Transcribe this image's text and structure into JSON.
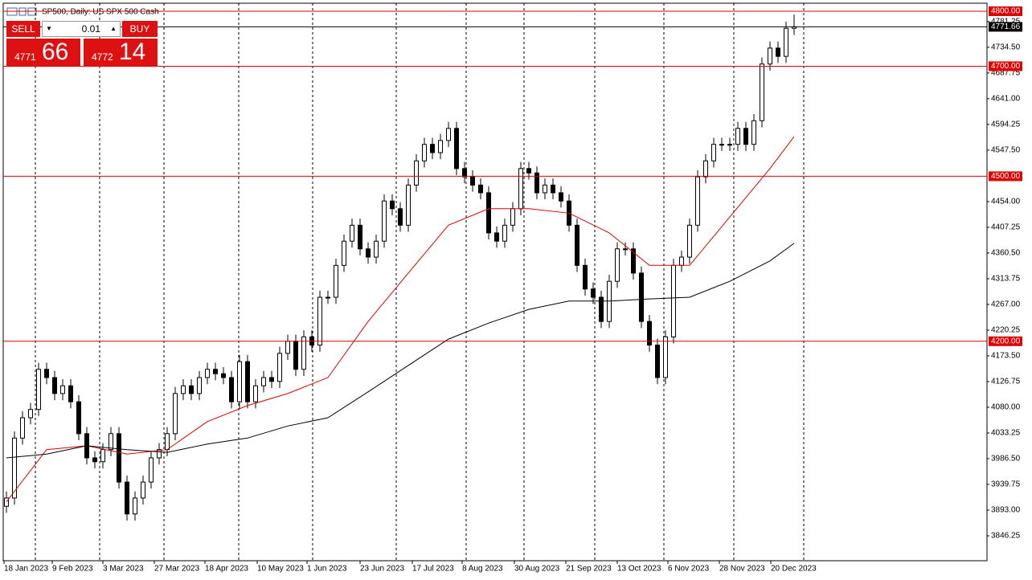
{
  "chart_data": {
    "type": "candlestick",
    "title": "SP500, Daily: US SPX 500 Cash",
    "trade_panel": {
      "sell": "SELL",
      "buy": "BUY",
      "volume": "0.01",
      "bid_main": "4771",
      "bid_pips": "66",
      "ask_main": "4772",
      "ask_pips": "14"
    },
    "xlim": [
      -0.4,
      122
    ],
    "ylim": [
      3801,
      4814.6
    ],
    "xticks": [
      {
        "value": 0,
        "label": "18 Jan 2023"
      },
      {
        "value": 6,
        "label": "9 Feb 2023"
      },
      {
        "value": 12.3,
        "label": "3 Mar 2023"
      },
      {
        "value": 18.7,
        "label": "27 Mar 2023"
      },
      {
        "value": 25,
        "label": "18 Apr 2023"
      },
      {
        "value": 31.5,
        "label": "10 May 2023"
      },
      {
        "value": 37.7,
        "label": "1 Jun 2023"
      },
      {
        "value": 44.3,
        "label": "23 Jun 2023"
      },
      {
        "value": 50.8,
        "label": "17 Jul 2023"
      },
      {
        "value": 57,
        "label": "8 Aug 2023"
      },
      {
        "value": 63.5,
        "label": "30 Aug 2023"
      },
      {
        "value": 69.9,
        "label": "21 Sep 2023"
      },
      {
        "value": 76.3,
        "label": "13 Oct 2023"
      },
      {
        "value": 82.6,
        "label": "6 Nov 2023"
      },
      {
        "value": 89,
        "label": "28 Nov 2023"
      },
      {
        "value": 95.4,
        "label": "20 Dec 2023"
      }
    ],
    "yticks": [
      3846.25,
      {
        "value": 3893,
        "label": "3893.00"
      },
      3939.75,
      {
        "value": 3986.5,
        "label": "3986.50"
      },
      4033.25,
      {
        "value": 4080,
        "label": "4080.00"
      },
      4126.75,
      {
        "value": 4173.5,
        "label": "4173.50"
      },
      4220.25,
      {
        "value": 4267,
        "label": "4267.00"
      },
      4313.75,
      {
        "value": 4360.5,
        "label": "4360.50"
      },
      4407.25,
      {
        "value": 4454,
        "label": "4454.00"
      },
      {
        "value": 4547.5,
        "label": "4547.50"
      },
      4594.25,
      {
        "value": 4641,
        "label": "4641.00"
      },
      4687.75,
      {
        "value": 4734.5,
        "label": "4734.50"
      },
      4781.25
    ],
    "levels": [
      {
        "value": 4800,
        "label": "4800.00",
        "color": "#e00000"
      },
      {
        "value": 4700,
        "label": "4700.00",
        "color": "#e00000"
      },
      {
        "value": 4500,
        "label": "4500.00",
        "color": "#e00000"
      },
      {
        "value": 4200,
        "label": "4200.00",
        "color": "#e00000"
      },
      {
        "value": 4771.66,
        "label": "4771.66",
        "color": "#000000"
      }
    ],
    "open": [
      3900,
      3915,
      4024,
      4061,
      4076,
      4149,
      4134,
      4105,
      4119,
      4090,
      4032,
      3988,
      3981,
      4003,
      4032,
      3944,
      3886,
      3915,
      3944,
      3988,
      4003,
      4032,
      4105,
      4119,
      4105,
      4134,
      4149,
      4141,
      4134,
      4090,
      4163,
      4090,
      4119,
      4134,
      4127,
      4178,
      4200,
      4149,
      4208,
      4193,
      4280,
      4280,
      4338,
      4382,
      4411,
      4368,
      4353,
      4382,
      4455,
      4441,
      4411,
      4484,
      4528,
      4558,
      4543,
      4565,
      4587,
      4514,
      4499,
      4484,
      4470,
      4397,
      4382,
      4411,
      4441,
      4514,
      4506,
      4470,
      4484,
      4470,
      4455,
      4411,
      4338,
      4295,
      4280,
      4236,
      4309,
      4368,
      4368,
      4324,
      4236,
      4193,
      4134,
      4208,
      4338,
      4353,
      4411,
      4499,
      4528,
      4558,
      4558,
      4558,
      4587,
      4558,
      4601,
      4704,
      4733,
      4718,
      4769
    ],
    "high": [
      3927,
      4036,
      4073,
      4088,
      4161,
      4161,
      4146,
      4131,
      4131,
      4102,
      4044,
      4000,
      4015,
      4044,
      4044,
      3956,
      3927,
      3956,
      4000,
      4015,
      4044,
      4117,
      4131,
      4131,
      4146,
      4161,
      4161,
      4153,
      4146,
      4175,
      4175,
      4131,
      4146,
      4146,
      4190,
      4212,
      4212,
      4220,
      4220,
      4292,
      4292,
      4350,
      4394,
      4423,
      4423,
      4380,
      4394,
      4467,
      4467,
      4453,
      4496,
      4540,
      4570,
      4570,
      4577,
      4599,
      4599,
      4526,
      4511,
      4496,
      4482,
      4409,
      4423,
      4453,
      4526,
      4526,
      4518,
      4496,
      4496,
      4482,
      4467,
      4423,
      4350,
      4307,
      4292,
      4321,
      4380,
      4380,
      4380,
      4336,
      4248,
      4205,
      4220,
      4350,
      4365,
      4423,
      4511,
      4540,
      4570,
      4570,
      4570,
      4599,
      4599,
      4613,
      4716,
      4745,
      4745,
      4781,
      4794
    ],
    "low": [
      3888,
      3903,
      4012,
      4049,
      4064,
      4122,
      4093,
      4093,
      4078,
      4020,
      3976,
      3969,
      3969,
      3991,
      3932,
      3874,
      3874,
      3903,
      3932,
      3976,
      3991,
      4020,
      4093,
      4093,
      4093,
      4122,
      4129,
      4122,
      4078,
      4078,
      4078,
      4078,
      4107,
      4115,
      4115,
      4166,
      4137,
      4137,
      4181,
      4181,
      4268,
      4268,
      4326,
      4370,
      4356,
      4341,
      4341,
      4370,
      4429,
      4399,
      4399,
      4472,
      4516,
      4531,
      4531,
      4553,
      4502,
      4487,
      4472,
      4458,
      4385,
      4370,
      4370,
      4399,
      4429,
      4494,
      4458,
      4458,
      4458,
      4443,
      4399,
      4326,
      4283,
      4268,
      4224,
      4224,
      4297,
      4356,
      4312,
      4224,
      4181,
      4122,
      4122,
      4196,
      4326,
      4341,
      4399,
      4487,
      4516,
      4546,
      4546,
      4546,
      4546,
      4546,
      4589,
      4692,
      4706,
      4706,
      4757
    ],
    "close": [
      3915,
      4024,
      4061,
      4076,
      4149,
      4134,
      4105,
      4119,
      4090,
      4032,
      3988,
      3981,
      4003,
      4032,
      3944,
      3886,
      3915,
      3944,
      3988,
      4003,
      4032,
      4105,
      4119,
      4105,
      4134,
      4149,
      4141,
      4134,
      4090,
      4163,
      4090,
      4119,
      4134,
      4127,
      4178,
      4200,
      4149,
      4208,
      4193,
      4280,
      4280,
      4338,
      4382,
      4411,
      4368,
      4353,
      4382,
      4455,
      4441,
      4411,
      4484,
      4528,
      4558,
      4543,
      4565,
      4587,
      4514,
      4499,
      4484,
      4470,
      4397,
      4382,
      4411,
      4441,
      4514,
      4506,
      4470,
      4484,
      4470,
      4455,
      4411,
      4338,
      4295,
      4280,
      4236,
      4309,
      4368,
      4368,
      4324,
      4236,
      4193,
      4134,
      4208,
      4338,
      4353,
      4411,
      4499,
      4528,
      4558,
      4558,
      4558,
      4587,
      4558,
      4601,
      4704,
      4733,
      4718,
      4769,
      4771.66
    ],
    "lines": [
      {
        "color": "#e00000",
        "x": [
          0,
          5,
          10,
          15,
          20,
          25,
          30,
          35,
          40,
          45,
          50,
          55,
          60,
          65,
          70,
          75,
          80,
          85,
          90,
          95,
          98
        ],
        "values": [
          3908,
          4003,
          4010,
          3995,
          4003,
          4054,
          4083,
          4105,
          4134,
          4236,
          4324,
          4411,
          4441,
          4441,
          4433,
          4397,
          4338,
          4338,
          4426,
          4514,
          4572
        ]
      },
      {
        "color": "#000000",
        "x": [
          0,
          5,
          10,
          15,
          20,
          25,
          30,
          35,
          40,
          45,
          50,
          55,
          60,
          65,
          70,
          75,
          80,
          85,
          90,
          95,
          98
        ],
        "values": [
          3988,
          3995,
          4010,
          4003,
          3998,
          4013,
          4024,
          4046,
          4061,
          4108,
          4156,
          4204,
          4233,
          4258,
          4273,
          4273,
          4277,
          4280,
          4309,
          4346,
          4378
        ]
      }
    ]
  }
}
